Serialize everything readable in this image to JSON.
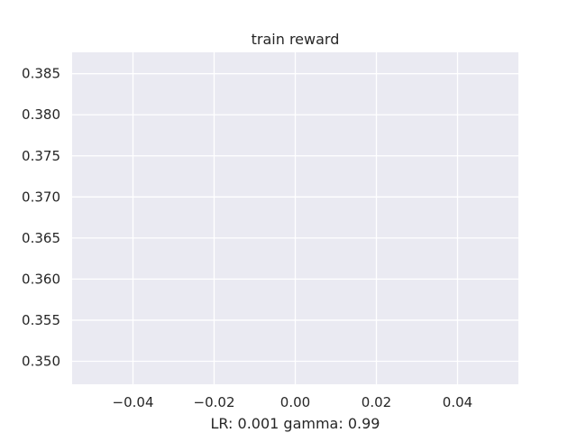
{
  "chart_data": {
    "type": "line",
    "title": "train reward",
    "xlabel": "LR: 0.001 gamma: 0.99",
    "ylabel": "",
    "xlim": [
      -0.055,
      0.055
    ],
    "ylim": [
      0.3472,
      0.3876
    ],
    "x_ticks": [
      -0.04,
      -0.02,
      0.0,
      0.02,
      0.04
    ],
    "x_tick_labels": [
      "−0.04",
      "−0.02",
      "0.00",
      "0.02",
      "0.04"
    ],
    "y_ticks": [
      0.35,
      0.355,
      0.36,
      0.365,
      0.37,
      0.375,
      0.38,
      0.385
    ],
    "y_tick_labels": [
      "0.350",
      "0.355",
      "0.360",
      "0.365",
      "0.370",
      "0.375",
      "0.380",
      "0.385"
    ],
    "grid": true,
    "series": [],
    "colors": {
      "plot_background": "#EAEAF2",
      "grid": "#FFFFFF",
      "text": "#262626"
    }
  }
}
